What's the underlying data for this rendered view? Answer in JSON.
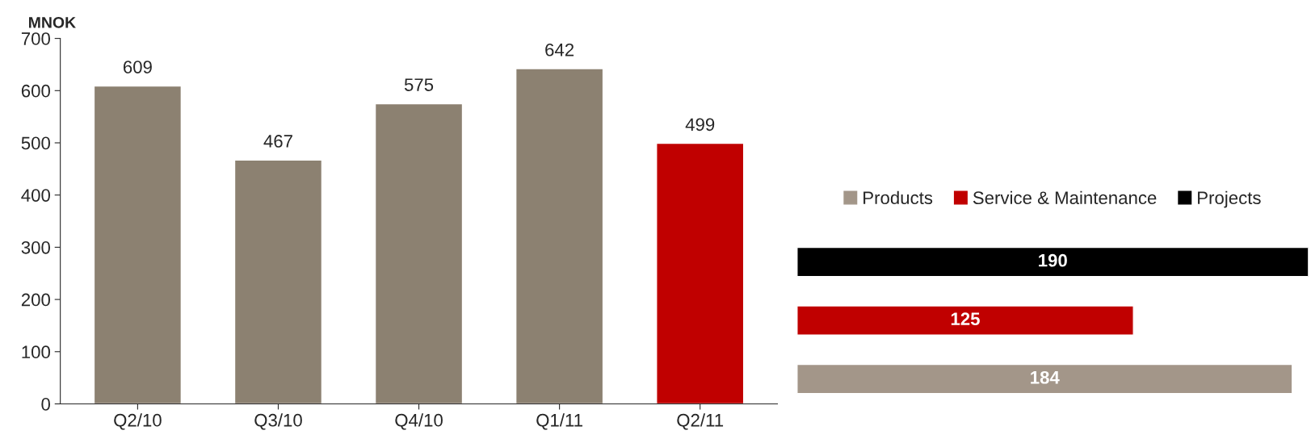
{
  "chart_data": [
    {
      "type": "bar",
      "ylabel": "MNOK",
      "categories": [
        "Q2/10",
        "Q3/10",
        "Q4/10",
        "Q1/11",
        "Q2/11"
      ],
      "values": [
        609,
        467,
        575,
        642,
        499
      ],
      "colors": [
        "#8c8171",
        "#8c8171",
        "#8c8171",
        "#8c8171",
        "#c00000"
      ],
      "ylim": [
        0,
        700
      ],
      "yticks": [
        0,
        100,
        200,
        300,
        400,
        500,
        600,
        700
      ],
      "data_labels": true,
      "grid": false
    },
    {
      "type": "bar",
      "orientation": "horizontal",
      "stacked": true,
      "categories": [
        null,
        null,
        null
      ],
      "series": [
        {
          "name": "Products",
          "color": "#a39689",
          "values": [
            null,
            null,
            184
          ]
        },
        {
          "name": "Service & Maintenance",
          "color": "#c00000",
          "values": [
            null,
            125,
            null
          ]
        },
        {
          "name": "Projects",
          "color": "#000000",
          "values": [
            190,
            null,
            null
          ]
        }
      ],
      "data_labels": true,
      "legend": "top",
      "tick_labels": false
    }
  ]
}
